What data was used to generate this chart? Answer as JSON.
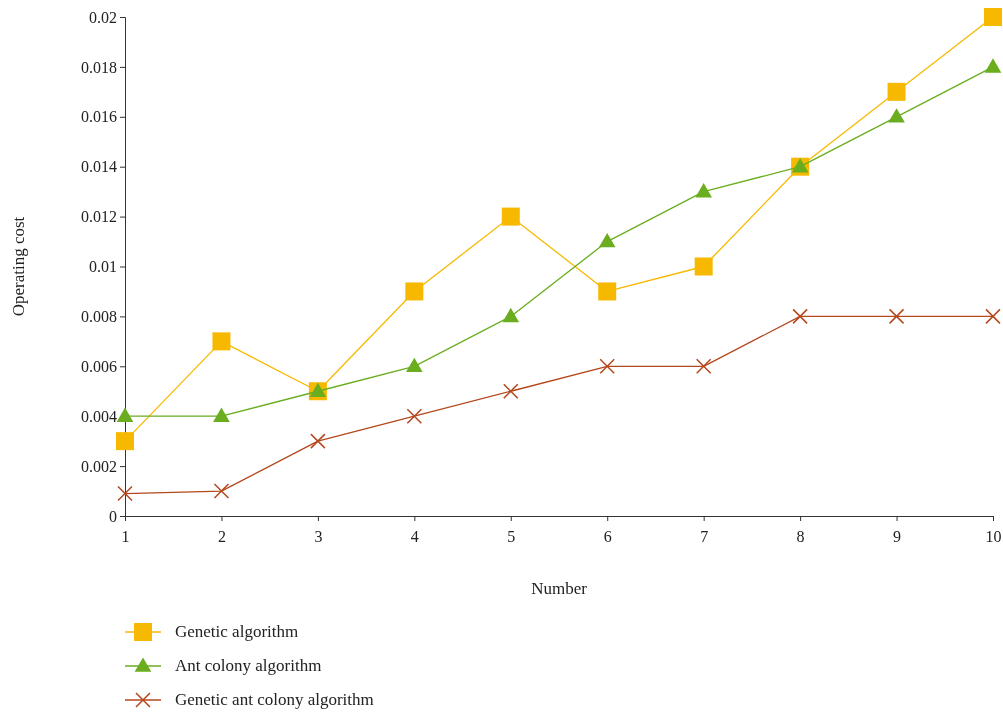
{
  "chart_data": {
    "type": "line",
    "xlabel": "Number",
    "ylabel": "Operating cost",
    "x": [
      1,
      2,
      3,
      4,
      5,
      6,
      7,
      8,
      9,
      10
    ],
    "xlim": [
      1,
      10
    ],
    "xticks": [
      1,
      2,
      3,
      4,
      5,
      6,
      7,
      8,
      9,
      10
    ],
    "ylim": [
      0,
      0.02
    ],
    "yticks": [
      0,
      0.002,
      0.004,
      0.006,
      0.008,
      0.01,
      0.012,
      0.014,
      0.016,
      0.018,
      0.02
    ],
    "grid": false,
    "legend": "bottom left",
    "line_style": "solid",
    "series": [
      {
        "name": "Genetic algorithm",
        "color": "#f7b900",
        "marker": "square",
        "values": [
          0.003,
          0.007,
          0.005,
          0.009,
          0.012,
          0.009,
          0.01,
          0.014,
          0.017,
          0.02
        ]
      },
      {
        "name": "Ant colony algorithm",
        "color": "#6aad1f",
        "marker": "triangle",
        "values": [
          0.004,
          0.004,
          0.005,
          0.006,
          0.008,
          0.011,
          0.013,
          0.014,
          0.016,
          0.018
        ]
      },
      {
        "name": "Genetic ant colony algorithm",
        "color": "#b4471c",
        "marker": "cross",
        "values": [
          0.0009,
          0.001,
          0.003,
          0.004,
          0.005,
          0.006,
          0.006,
          0.008,
          0.008,
          0.008
        ]
      }
    ]
  }
}
